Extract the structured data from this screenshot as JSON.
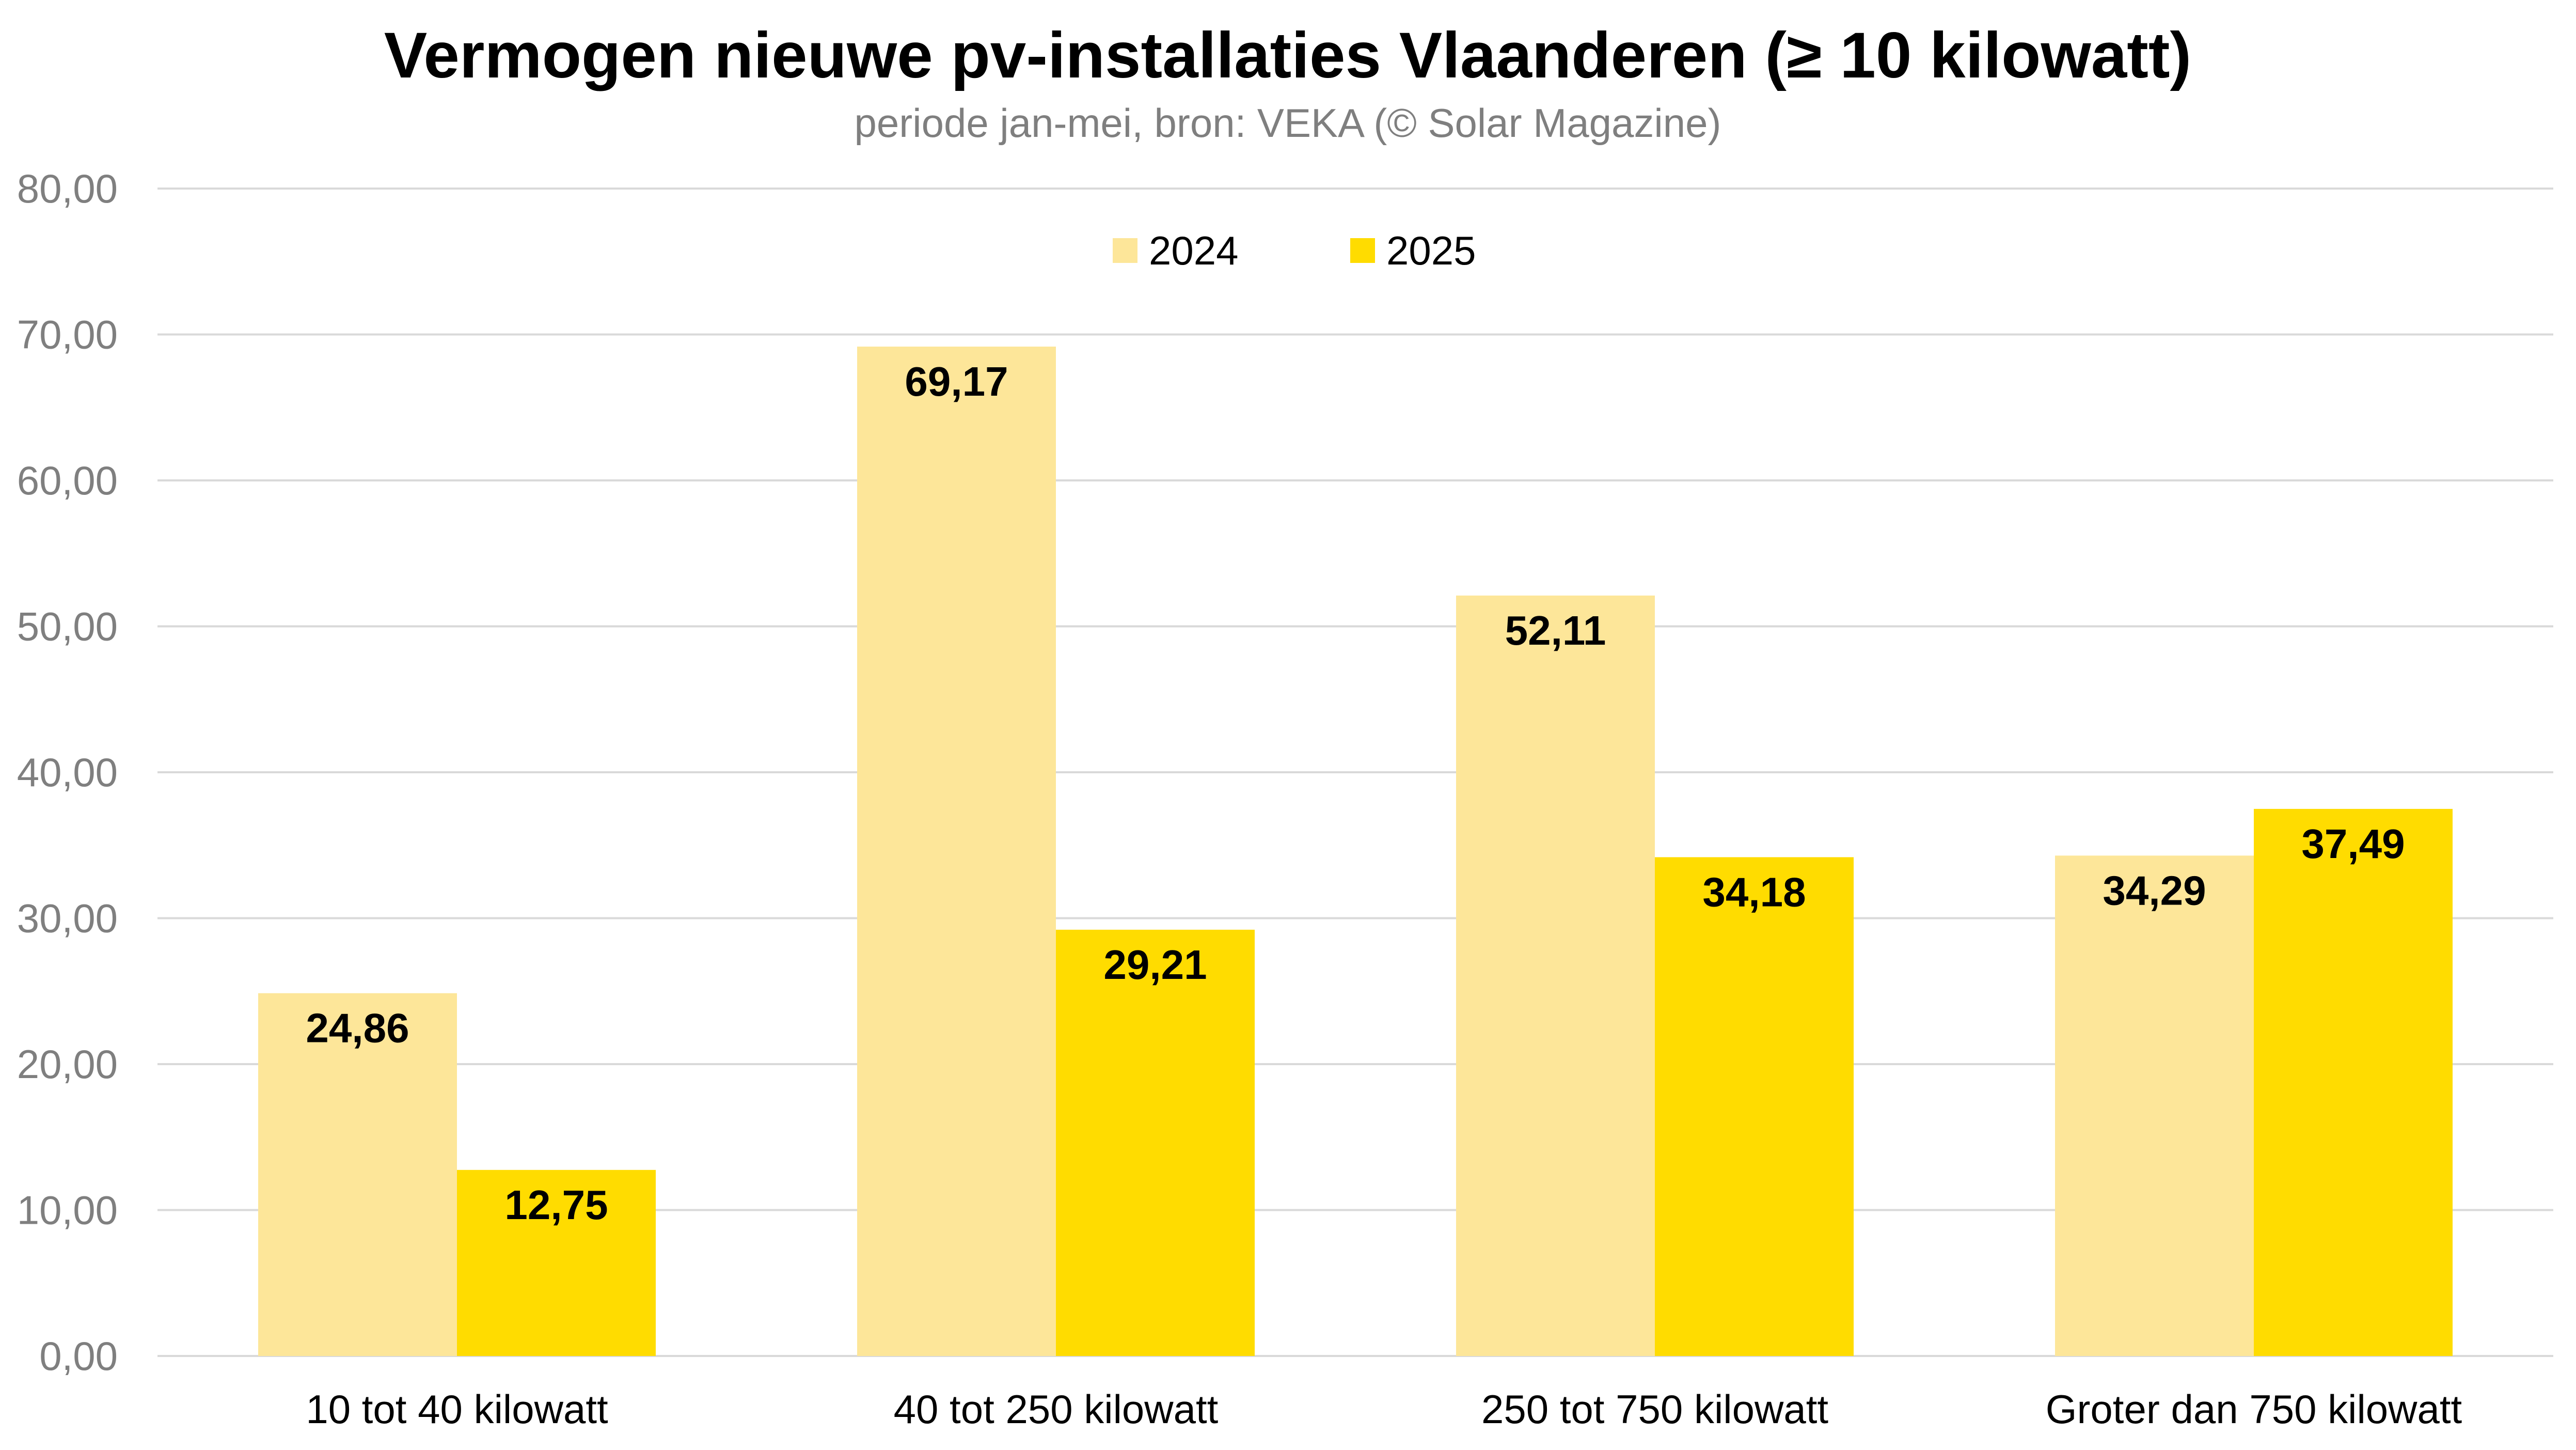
{
  "chart_data": {
    "type": "bar",
    "title": "Vermogen nieuwe pv-installaties Vlaanderen (≥ 10 kilowatt)",
    "subtitle": "periode jan-mei, bron: VEKA (© Solar Magazine)",
    "categories": [
      "10 tot 40 kilowatt",
      "40 tot 250 kilowatt",
      "250 tot 750 kilowatt",
      "Groter dan 750 kilowatt"
    ],
    "series": [
      {
        "name": "2024",
        "color": "#fde699",
        "values": [
          24.86,
          69.17,
          52.11,
          34.29
        ],
        "labels": [
          "24,86",
          "69,17",
          "52,11",
          "34,29"
        ]
      },
      {
        "name": "2025",
        "color": "#ffdc00",
        "values": [
          12.75,
          29.21,
          34.18,
          37.49
        ],
        "labels": [
          "12,75",
          "29,21",
          "34,18",
          "37,49"
        ]
      }
    ],
    "ylim": [
      0,
      80
    ],
    "yticks": [
      "0,00",
      "10,00",
      "20,00",
      "30,00",
      "40,00",
      "50,00",
      "60,00",
      "70,00",
      "80,00"
    ],
    "xlabel": "",
    "ylabel": "",
    "grid": true,
    "legend_position": "top-center"
  }
}
